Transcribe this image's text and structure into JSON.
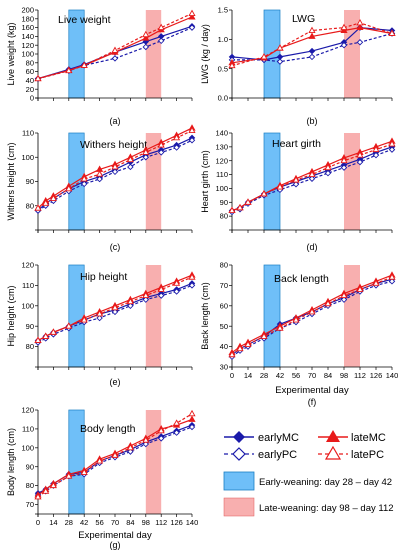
{
  "colors": {
    "early": "#1a1aaa",
    "late": "#e81a1a",
    "early_weaning_fill": "#3fa9f5",
    "late_weaning_fill": "#f47a7a"
  },
  "x_axis": {
    "label": "Experimental day",
    "ticks": [
      0,
      14,
      28,
      42,
      56,
      70,
      84,
      98,
      112,
      126,
      140
    ]
  },
  "legend": {
    "series": [
      {
        "name": "earlyMC",
        "marker": "filled-diamond",
        "line": "solid"
      },
      {
        "name": "earlyPC",
        "marker": "open-diamond",
        "line": "dashed"
      },
      {
        "name": "lateMC",
        "marker": "filled-triangle",
        "line": "solid"
      },
      {
        "name": "latePC",
        "marker": "open-triangle",
        "line": "dashed"
      }
    ],
    "periods": [
      {
        "label": "Early-weaning: day 28 – day 42"
      },
      {
        "label": "Late-weaning: day 98 – day 112"
      }
    ]
  },
  "chart_data": [
    {
      "type": "line",
      "panel": "(a)",
      "title": "Live weight",
      "ylabel": "Live weight (kg)",
      "ylim": [
        0,
        200
      ],
      "yticks": [
        0,
        20,
        40,
        60,
        80,
        100,
        120,
        140,
        160,
        180,
        200
      ],
      "x": [
        0,
        28,
        42,
        70,
        98,
        112,
        140
      ],
      "series": [
        {
          "name": "earlyMC",
          "values": [
            44,
            65,
            76,
            104,
            128,
            140,
            163
          ]
        },
        {
          "name": "earlyPC",
          "values": [
            44,
            62,
            74,
            90,
            116,
            130,
            160
          ]
        },
        {
          "name": "lateMC",
          "values": [
            44,
            63,
            74,
            104,
            136,
            155,
            184
          ]
        },
        {
          "name": "latePC",
          "values": [
            44,
            62,
            74,
            108,
            144,
            160,
            192
          ]
        }
      ]
    },
    {
      "type": "line",
      "panel": "(b)",
      "title": "LWG",
      "ylabel": "LWG (kg / day)",
      "ylim": [
        0,
        1.5
      ],
      "yticks": [
        0.0,
        0.5,
        1.0,
        1.5
      ],
      "x": [
        0,
        28,
        42,
        70,
        98,
        112,
        140
      ],
      "series": [
        {
          "name": "earlyMC",
          "values": [
            0.7,
            0.65,
            0.7,
            0.8,
            0.95,
            1.2,
            1.15
          ]
        },
        {
          "name": "earlyPC",
          "values": [
            0.65,
            0.65,
            0.62,
            0.7,
            0.9,
            0.95,
            1.1
          ]
        },
        {
          "name": "lateMC",
          "values": [
            0.6,
            0.68,
            0.85,
            1.05,
            1.15,
            1.2,
            1.1
          ]
        },
        {
          "name": "latePC",
          "values": [
            0.55,
            0.7,
            0.85,
            1.15,
            1.2,
            1.28,
            1.1
          ]
        }
      ]
    },
    {
      "type": "line",
      "panel": "(c)",
      "title": "Withers height",
      "ylabel": "Withers height (cm)",
      "ylim": [
        70,
        110
      ],
      "yticks": [
        80,
        90,
        100,
        110
      ],
      "x": [
        0,
        7,
        14,
        28,
        42,
        56,
        70,
        84,
        98,
        112,
        126,
        140
      ],
      "series": [
        {
          "name": "earlyMC",
          "values": [
            78,
            81,
            83,
            87,
            90,
            92,
            95,
            98,
            101,
            103,
            105,
            108
          ]
        },
        {
          "name": "earlyPC",
          "values": [
            78,
            80,
            82,
            86,
            89,
            91,
            94,
            96,
            100,
            102,
            104,
            107
          ]
        },
        {
          "name": "lateMC",
          "values": [
            79,
            82,
            84,
            88,
            92,
            95,
            97,
            100,
            103,
            106,
            109,
            112
          ]
        },
        {
          "name": "latePC",
          "values": [
            79,
            81,
            83,
            87,
            91,
            93,
            96,
            99,
            102,
            105,
            108,
            111
          ]
        }
      ]
    },
    {
      "type": "line",
      "panel": "(d)",
      "title": "Heart girth",
      "ylabel": "Heart girth (cm)",
      "ylim": [
        70,
        140
      ],
      "yticks": [
        80,
        90,
        100,
        110,
        120,
        130,
        140
      ],
      "x": [
        0,
        7,
        14,
        28,
        42,
        56,
        70,
        84,
        98,
        112,
        126,
        140
      ],
      "series": [
        {
          "name": "earlyMC",
          "values": [
            84,
            86,
            90,
            96,
            101,
            105,
            109,
            113,
            117,
            121,
            126,
            130
          ]
        },
        {
          "name": "earlyPC",
          "values": [
            83,
            85,
            89,
            95,
            99,
            103,
            107,
            111,
            115,
            119,
            124,
            128
          ]
        },
        {
          "name": "lateMC",
          "values": [
            84,
            86,
            90,
            96,
            102,
            107,
            112,
            117,
            122,
            126,
            130,
            134
          ]
        },
        {
          "name": "latePC",
          "values": [
            84,
            86,
            90,
            96,
            101,
            106,
            110,
            115,
            120,
            124,
            128,
            132
          ]
        }
      ]
    },
    {
      "type": "line",
      "panel": "(e)",
      "title": "Hip height",
      "ylabel": "Hip height (cm)",
      "ylim": [
        70,
        120
      ],
      "yticks": [
        80,
        90,
        100,
        110,
        120
      ],
      "x": [
        0,
        7,
        14,
        28,
        42,
        56,
        70,
        84,
        98,
        112,
        126,
        140
      ],
      "series": [
        {
          "name": "earlyMC",
          "values": [
            83,
            85,
            87,
            90,
            93,
            96,
            98,
            101,
            104,
            106,
            108,
            111
          ]
        },
        {
          "name": "earlyPC",
          "values": [
            82,
            84,
            86,
            89,
            92,
            94,
            97,
            100,
            103,
            105,
            107,
            110
          ]
        },
        {
          "name": "lateMC",
          "values": [
            83,
            85,
            87,
            90,
            94,
            97,
            100,
            103,
            106,
            109,
            112,
            115
          ]
        },
        {
          "name": "latePC",
          "values": [
            83,
            85,
            87,
            90,
            93,
            96,
            99,
            102,
            105,
            108,
            111,
            114
          ]
        }
      ]
    },
    {
      "type": "line",
      "panel": "(f)",
      "title": "Back length",
      "ylabel": "Back length (cm)",
      "ylim": [
        30,
        80
      ],
      "yticks": [
        30,
        40,
        50,
        60,
        70,
        80
      ],
      "x": [
        0,
        7,
        14,
        28,
        42,
        56,
        70,
        84,
        98,
        112,
        126,
        140
      ],
      "series": [
        {
          "name": "earlyMC",
          "values": [
            36,
            39,
            41,
            45,
            51,
            54,
            57,
            61,
            64,
            68,
            71,
            73
          ]
        },
        {
          "name": "earlyPC",
          "values": [
            35,
            38,
            40,
            44,
            49,
            52,
            56,
            60,
            63,
            67,
            70,
            72
          ]
        },
        {
          "name": "lateMC",
          "values": [
            37,
            40,
            42,
            46,
            50,
            54,
            58,
            62,
            66,
            69,
            72,
            75
          ]
        },
        {
          "name": "latePC",
          "values": [
            36,
            39,
            41,
            45,
            49,
            53,
            57,
            61,
            65,
            68,
            71,
            74
          ]
        }
      ]
    },
    {
      "type": "line",
      "panel": "(g)",
      "title": "Body length",
      "ylabel": "Body length (cm)",
      "ylim": [
        65,
        120
      ],
      "yticks": [
        70,
        80,
        90,
        100,
        110,
        120
      ],
      "x": [
        0,
        7,
        14,
        28,
        42,
        56,
        70,
        84,
        98,
        112,
        126,
        140
      ],
      "series": [
        {
          "name": "earlyMC",
          "values": [
            76,
            78,
            81,
            86,
            87,
            93,
            96,
            99,
            103,
            106,
            109,
            112
          ]
        },
        {
          "name": "earlyPC",
          "values": [
            75,
            77,
            80,
            85,
            86,
            92,
            95,
            98,
            102,
            105,
            108,
            111
          ]
        },
        {
          "name": "lateMC",
          "values": [
            75,
            78,
            81,
            86,
            88,
            94,
            97,
            101,
            105,
            110,
            112,
            115
          ]
        },
        {
          "name": "latePC",
          "values": [
            74,
            77,
            80,
            85,
            87,
            93,
            96,
            100,
            104,
            109,
            113,
            118
          ]
        }
      ]
    }
  ]
}
